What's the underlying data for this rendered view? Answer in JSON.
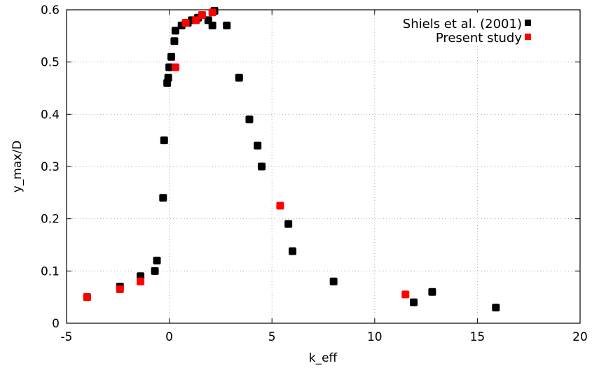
{
  "chart_data": {
    "type": "scatter",
    "xlabel": "k_eff",
    "ylabel": "y_max/D",
    "xlim": [
      -5,
      20
    ],
    "ylim": [
      0,
      0.6
    ],
    "x_ticks": [
      "-5",
      "0",
      "5",
      "10",
      "15",
      "20"
    ],
    "y_ticks": [
      "0",
      "0.1",
      "0.2",
      "0.3",
      "0.4",
      "0.5",
      "0.6"
    ],
    "grid": true,
    "legend_position": "top-right",
    "series": [
      {
        "name": "Shiels et al. (2001)",
        "color": "#000000",
        "points": [
          [
            -4.0,
            0.05
          ],
          [
            -2.4,
            0.07
          ],
          [
            -1.4,
            0.09
          ],
          [
            -0.7,
            0.1
          ],
          [
            -0.6,
            0.12
          ],
          [
            -0.3,
            0.24
          ],
          [
            -0.25,
            0.35
          ],
          [
            -0.1,
            0.46
          ],
          [
            -0.05,
            0.47
          ],
          [
            0.0,
            0.49
          ],
          [
            0.1,
            0.51
          ],
          [
            0.25,
            0.54
          ],
          [
            0.3,
            0.56
          ],
          [
            0.6,
            0.57
          ],
          [
            0.9,
            0.575
          ],
          [
            1.1,
            0.58
          ],
          [
            1.4,
            0.585
          ],
          [
            1.6,
            0.59
          ],
          [
            1.9,
            0.58
          ],
          [
            2.1,
            0.57
          ],
          [
            2.2,
            0.598
          ],
          [
            2.8,
            0.57
          ],
          [
            3.4,
            0.47
          ],
          [
            3.9,
            0.39
          ],
          [
            4.3,
            0.34
          ],
          [
            4.5,
            0.3
          ],
          [
            5.8,
            0.19
          ],
          [
            6.0,
            0.138
          ],
          [
            8.0,
            0.08
          ],
          [
            11.9,
            0.04
          ],
          [
            12.8,
            0.06
          ],
          [
            15.9,
            0.03
          ]
        ]
      },
      {
        "name": "Present study",
        "color": "#ff0000",
        "points": [
          [
            -4.0,
            0.05
          ],
          [
            -2.4,
            0.065
          ],
          [
            -1.4,
            0.08
          ],
          [
            0.3,
            0.49
          ],
          [
            0.8,
            0.575
          ],
          [
            1.3,
            0.58
          ],
          [
            1.6,
            0.59
          ],
          [
            2.1,
            0.595
          ],
          [
            5.4,
            0.225
          ],
          [
            11.5,
            0.055
          ]
        ]
      }
    ]
  }
}
